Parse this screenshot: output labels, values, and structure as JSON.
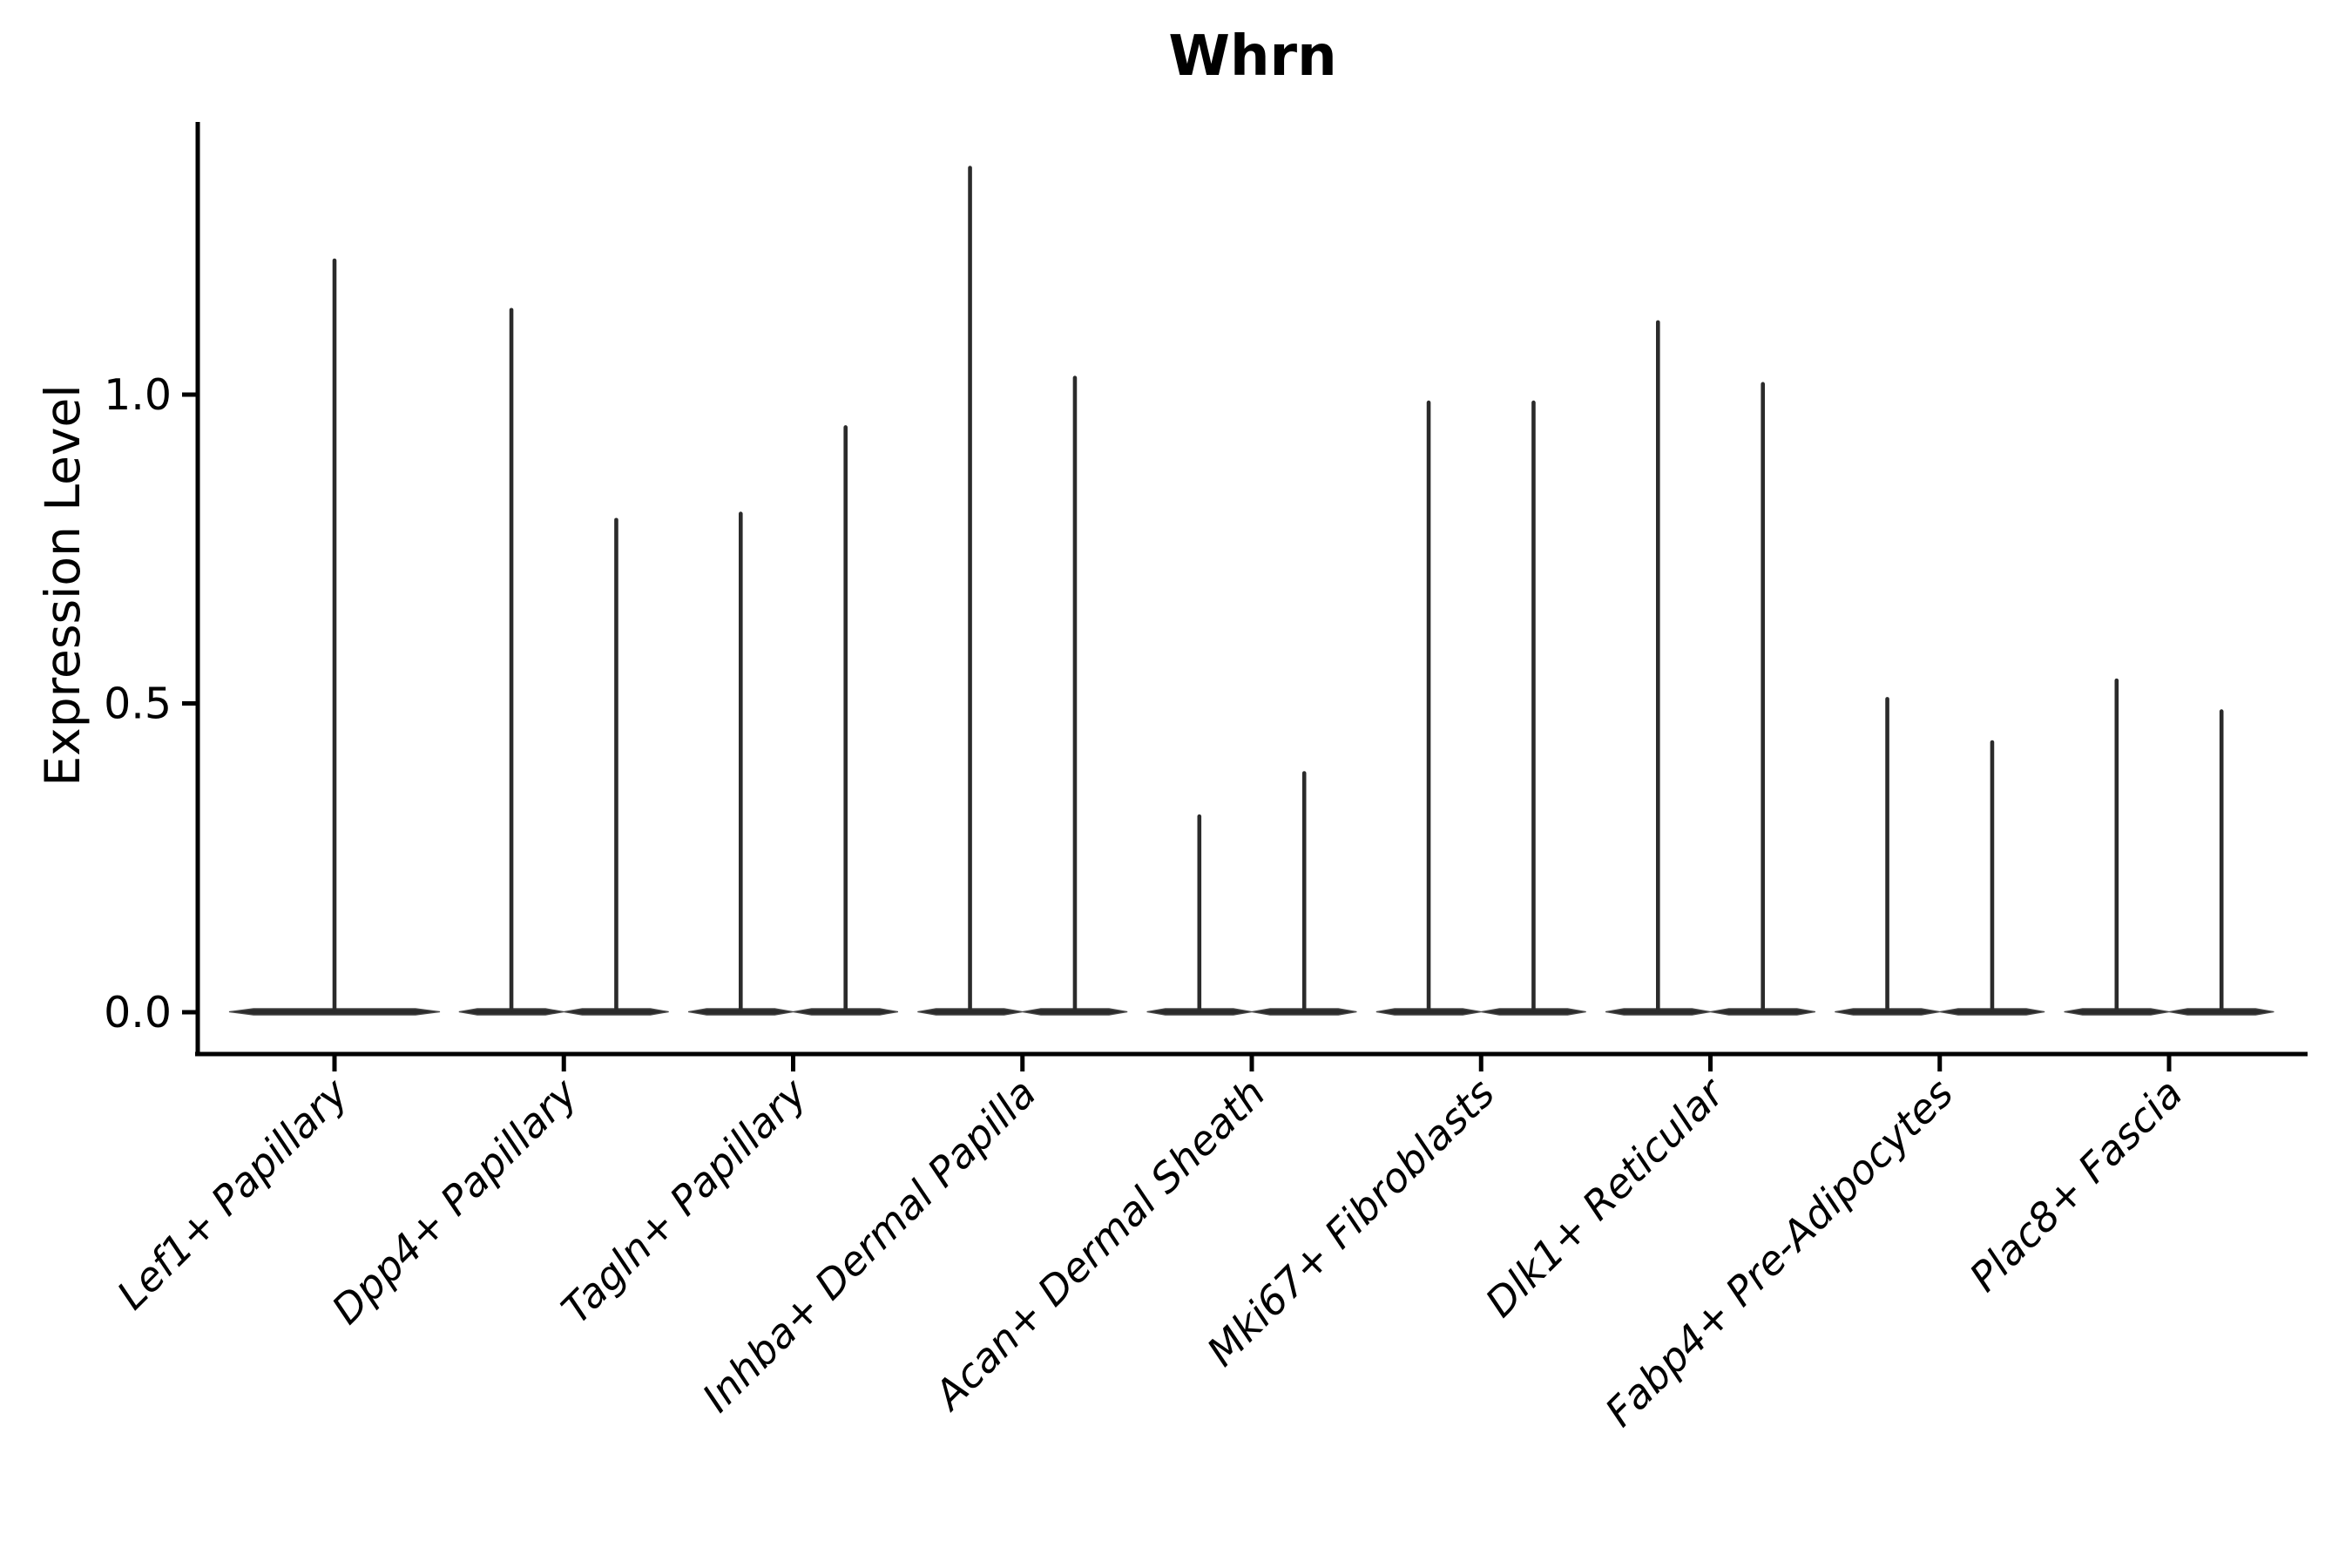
{
  "chart_data": {
    "type": "violin",
    "title": "Whrn",
    "ylabel": "Expression Level",
    "xlabel": "",
    "ylim": [
      -0.07,
      1.44
    ],
    "yticks": [
      0.0,
      0.5,
      1.0
    ],
    "ytick_labels": [
      "0.0",
      "0.5",
      "1.0"
    ],
    "grid": false,
    "legend": "none",
    "note": "Each violin has nearly all density at expression 0 (wide flat base) with a thin spike up to its maximum value; categories with two values show two side-by-side violins",
    "categories": [
      "Lef1+ Papillary",
      "Dpp4+ Papillary",
      "Tagln+ Papillary",
      "Inhba+ Dermal Papilla",
      "Acan+ Dermal Sheath",
      "Mki67+ Fibroblasts",
      "Dlk1+ Reticular",
      "Fabp4+ Pre-Adipocytes",
      "Plac8+ Fascia"
    ],
    "series": [
      {
        "category": "Lef1+ Papillary",
        "violin_maxima": [
          1.22
        ]
      },
      {
        "category": "Dpp4+ Papillary",
        "violin_maxima": [
          1.14,
          0.8
        ]
      },
      {
        "category": "Tagln+ Papillary",
        "violin_maxima": [
          0.81,
          0.95
        ]
      },
      {
        "category": "Inhba+ Dermal Papilla",
        "violin_maxima": [
          1.37,
          1.03
        ]
      },
      {
        "category": "Acan+ Dermal Sheath",
        "violin_maxima": [
          0.32,
          0.39
        ]
      },
      {
        "category": "Mki67+ Fibroblasts",
        "violin_maxima": [
          0.99,
          0.99
        ]
      },
      {
        "category": "Dlk1+ Reticular",
        "violin_maxima": [
          1.12,
          1.02
        ]
      },
      {
        "category": "Fabp4+ Pre-Adipocytes",
        "violin_maxima": [
          0.51,
          0.44
        ]
      },
      {
        "category": "Plac8+ Fascia",
        "violin_maxima": [
          0.54,
          0.49
        ]
      }
    ],
    "colors": {
      "violin": "#2b2b2b",
      "violin_edge": "#4a4a4a",
      "axis": "#000000",
      "text": "#000000",
      "background": "#ffffff"
    }
  }
}
